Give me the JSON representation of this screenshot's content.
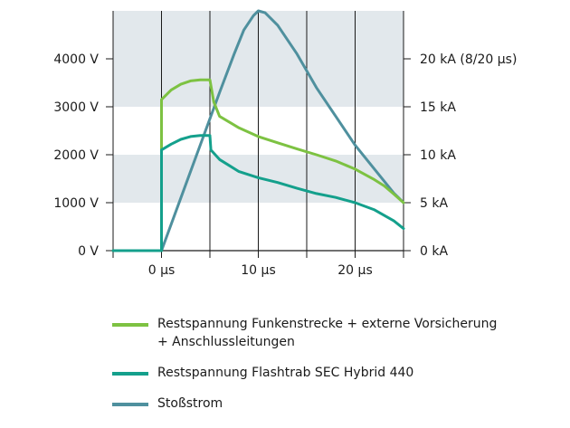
{
  "chart_data": {
    "type": "line",
    "x_tick_labels": [
      "0 µs",
      "10 µs",
      "20 µs"
    ],
    "x_tick_values": [
      0,
      10,
      20
    ],
    "xlim": [
      -5,
      25
    ],
    "left_axis": {
      "tick_labels": [
        "0 V",
        "1000 V",
        "2000 V",
        "3000 V",
        "4000 V"
      ],
      "tick_values": [
        0,
        1000,
        2000,
        3000,
        4000
      ],
      "ylim": [
        0,
        5000
      ]
    },
    "right_axis": {
      "tick_labels": [
        "0 kA",
        "5 kA",
        "10 kA",
        "15 kA",
        "20 kA (8/20 µs)"
      ],
      "tick_values": [
        0,
        5,
        10,
        15,
        20
      ],
      "ylim": [
        0,
        25
      ]
    },
    "grid": "horizontal bands",
    "series": [
      {
        "name_lines": [
          "Restspannung Funkenstrecke + externe Vorsicherung",
          "+ Anschlussleitungen"
        ],
        "color": "#7dc242",
        "axis": "left",
        "points": [
          [
            -5,
            0
          ],
          [
            0,
            0
          ],
          [
            0,
            3150
          ],
          [
            0.5,
            3250
          ],
          [
            1,
            3350
          ],
          [
            2,
            3470
          ],
          [
            3,
            3540
          ],
          [
            4,
            3560
          ],
          [
            5,
            3560
          ],
          [
            5.4,
            3100
          ],
          [
            6,
            2800
          ],
          [
            8,
            2560
          ],
          [
            10,
            2380
          ],
          [
            12,
            2250
          ],
          [
            14,
            2120
          ],
          [
            16,
            2000
          ],
          [
            18,
            1870
          ],
          [
            20,
            1700
          ],
          [
            22,
            1480
          ],
          [
            23,
            1350
          ],
          [
            24,
            1180
          ],
          [
            25,
            1000
          ]
        ]
      },
      {
        "name_lines": [
          "Restspannung Flashtrab SEC Hybrid 440"
        ],
        "color": "#14a08c",
        "axis": "left",
        "points": [
          [
            -5,
            0
          ],
          [
            0,
            0
          ],
          [
            0,
            2100
          ],
          [
            1,
            2220
          ],
          [
            2,
            2320
          ],
          [
            3,
            2380
          ],
          [
            4,
            2400
          ],
          [
            5,
            2400
          ],
          [
            5.1,
            2100
          ],
          [
            6,
            1900
          ],
          [
            8,
            1650
          ],
          [
            10,
            1520
          ],
          [
            12,
            1420
          ],
          [
            14,
            1300
          ],
          [
            16,
            1190
          ],
          [
            18,
            1110
          ],
          [
            20,
            1000
          ],
          [
            22,
            850
          ],
          [
            24,
            620
          ],
          [
            25,
            460
          ]
        ]
      },
      {
        "name_lines": [
          "Stoßstrom"
        ],
        "color": "#4f909e",
        "axis": "right",
        "points": [
          [
            0,
            0
          ],
          [
            2,
            5.5
          ],
          [
            4,
            11
          ],
          [
            6,
            16.5
          ],
          [
            7.5,
            20.5
          ],
          [
            8.5,
            23
          ],
          [
            9.5,
            24.5
          ],
          [
            10,
            25
          ],
          [
            10.7,
            24.8
          ],
          [
            12,
            23.5
          ],
          [
            14,
            20.5
          ],
          [
            16,
            17
          ],
          [
            18,
            14
          ],
          [
            20,
            11
          ],
          [
            22,
            8.5
          ],
          [
            24,
            6
          ],
          [
            25,
            5
          ]
        ]
      }
    ]
  }
}
